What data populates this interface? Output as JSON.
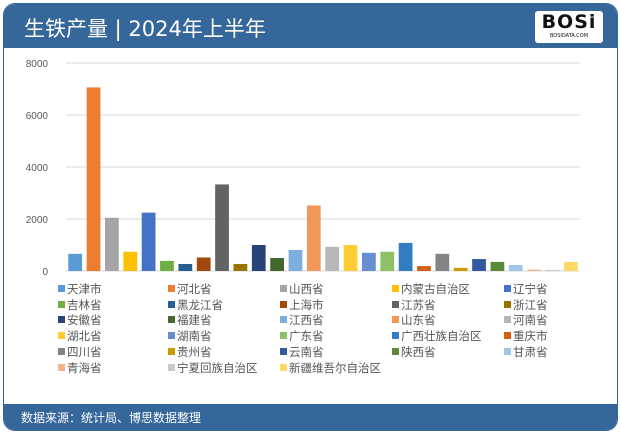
{
  "header": {
    "title": "生铁产量 | 2024年上半年",
    "logo_text": "BOSi",
    "logo_sub": "BOSIDATA.COM"
  },
  "footer": {
    "source": "数据来源：统计局、博思数据整理"
  },
  "colors": {
    "header": "#35679a"
  },
  "chart_data": {
    "type": "bar",
    "title": "生铁产量 | 2024年上半年",
    "xlabel": "",
    "ylabel": "",
    "ylim": [
      0,
      8000
    ],
    "yticks": [
      0,
      2000,
      4000,
      6000,
      8000
    ],
    "grid": true,
    "legend": "bottom",
    "series": [
      {
        "name": "天津市",
        "value": 660,
        "color": "#5b9bd5"
      },
      {
        "name": "河北省",
        "value": 7060,
        "color": "#ed7d31"
      },
      {
        "name": "山西省",
        "value": 2050,
        "color": "#a5a5a5"
      },
      {
        "name": "内蒙古自治区",
        "value": 740,
        "color": "#ffc000"
      },
      {
        "name": "辽宁省",
        "value": 2245,
        "color": "#4472c4"
      },
      {
        "name": "吉林省",
        "value": 390,
        "color": "#70ad47"
      },
      {
        "name": "黑龙江省",
        "value": 270,
        "color": "#255e91"
      },
      {
        "name": "上海市",
        "value": 520,
        "color": "#9e480e"
      },
      {
        "name": "江苏省",
        "value": 3330,
        "color": "#636363"
      },
      {
        "name": "浙江省",
        "value": 270,
        "color": "#997300"
      },
      {
        "name": "安徽省",
        "value": 1000,
        "color": "#264478"
      },
      {
        "name": "福建省",
        "value": 500,
        "color": "#43682b"
      },
      {
        "name": "江西省",
        "value": 810,
        "color": "#7cafdd"
      },
      {
        "name": "山东省",
        "value": 2520,
        "color": "#f1975a"
      },
      {
        "name": "河南省",
        "value": 930,
        "color": "#b7b7b7"
      },
      {
        "name": "湖北省",
        "value": 1000,
        "color": "#ffcd33"
      },
      {
        "name": "湖南省",
        "value": 700,
        "color": "#698ed0"
      },
      {
        "name": "广东省",
        "value": 740,
        "color": "#8cc168"
      },
      {
        "name": "广西壮族自治区",
        "value": 1080,
        "color": "#327dc2"
      },
      {
        "name": "重庆市",
        "value": 190,
        "color": "#d26012"
      },
      {
        "name": "四川省",
        "value": 660,
        "color": "#848484"
      },
      {
        "name": "贵州省",
        "value": 120,
        "color": "#cc9a00"
      },
      {
        "name": "云南省",
        "value": 460,
        "color": "#335aa1"
      },
      {
        "name": "陕西省",
        "value": 350,
        "color": "#5a8a39"
      },
      {
        "name": "甘肃省",
        "value": 230,
        "color": "#a2c4e6"
      },
      {
        "name": "青海省",
        "value": 50,
        "color": "#f4b183"
      },
      {
        "name": "宁夏回族自治区",
        "value": 40,
        "color": "#c9c9c9"
      },
      {
        "name": "新疆维吾尔自治区",
        "value": 350,
        "color": "#ffd966"
      }
    ]
  }
}
